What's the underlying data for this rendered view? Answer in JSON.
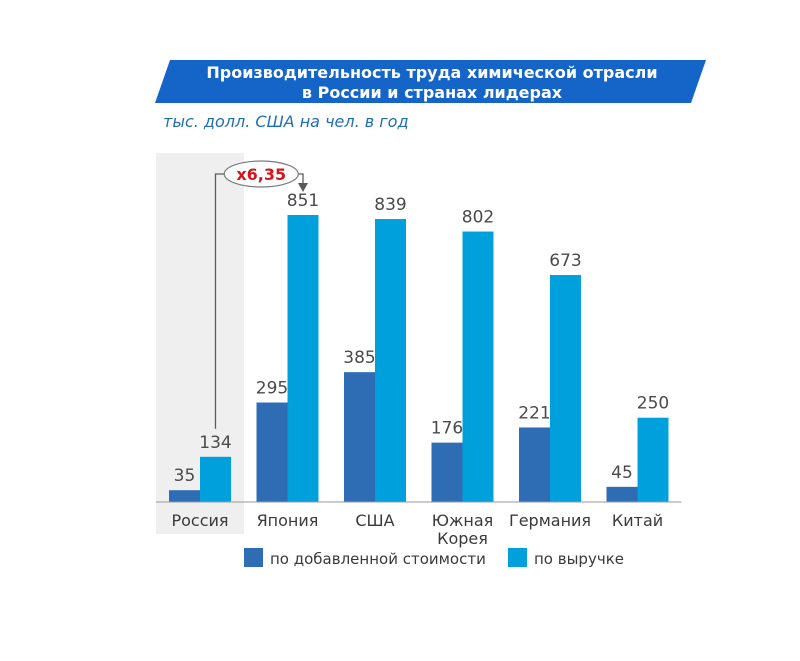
{
  "chart_data": {
    "type": "bar",
    "title_lines": [
      "Производительность труда химической отрасли",
      "в России и странах лидерах"
    ],
    "subtitle": "тыс. долл. США на чел. в год",
    "categories": [
      [
        "Россия"
      ],
      [
        "Япония"
      ],
      [
        "США"
      ],
      [
        "Южная",
        "Корея"
      ],
      [
        "Германия"
      ],
      [
        "Китай"
      ]
    ],
    "series": [
      {
        "name": "по добавленной стоимости",
        "color": "#2e6db4",
        "values": [
          35,
          295,
          385,
          176,
          221,
          45
        ]
      },
      {
        "name": "по выручке",
        "color": "#00a0dc",
        "values": [
          134,
          851,
          839,
          802,
          673,
          250
        ]
      }
    ],
    "ylim": [
      0,
      900
    ],
    "grid": false,
    "highlight_category_index": 0,
    "annotation": {
      "text": "х6,35",
      "from_category_index": 0,
      "to_category_index": 1,
      "series_index": 1
    },
    "legend_position": "bottom"
  },
  "colors": {
    "title_band": "#1565c9",
    "highlight_bg": "#efefef",
    "annotation_red": "#d4151c"
  }
}
